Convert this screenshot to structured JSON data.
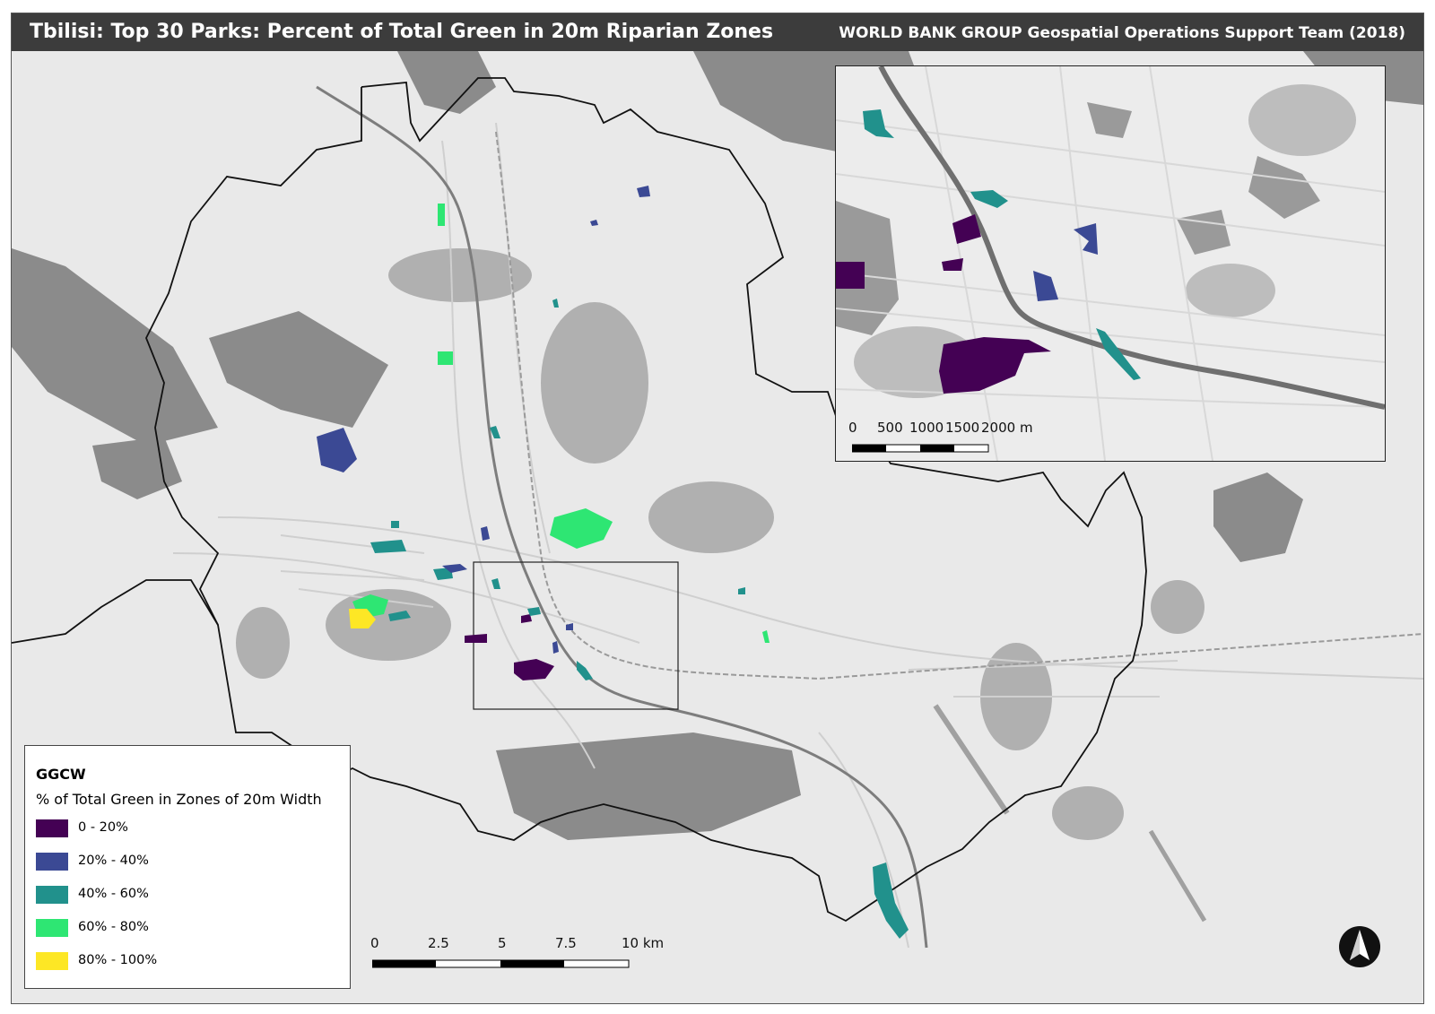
{
  "header": {
    "title": "Tbilisi: Top 30 Parks: Percent of Total Green in 20m Riparian Zones",
    "credit": "WORLD BANK GROUP Geospatial Operations Support Team (2018)"
  },
  "legend": {
    "title": "GGCW",
    "subtitle": "% of Total Green in Zones of 20m Width",
    "classes": [
      {
        "label": "0 - 20%",
        "color": "#440154"
      },
      {
        "label": "20% - 40%",
        "color": "#3b4994"
      },
      {
        "label": "40% - 60%",
        "color": "#21918c"
      },
      {
        "label": "60% - 80%",
        "color": "#2ee673"
      },
      {
        "label": "80% - 100%",
        "color": "#fde725"
      }
    ]
  },
  "main_scale": {
    "ticks": [
      "0",
      "2.5",
      "5",
      "7.5",
      "10 km"
    ]
  },
  "inset_scale": {
    "ticks": [
      "0",
      "500",
      "1000",
      "1500",
      "2000 m"
    ]
  },
  "colors": {
    "background": "#e9e9e9",
    "terrain_dark": "#8a8a8a",
    "terrain_mid": "#a9a9a9",
    "title_bar": "#3c3c3c"
  },
  "icons": [
    "north-arrow-icon"
  ]
}
